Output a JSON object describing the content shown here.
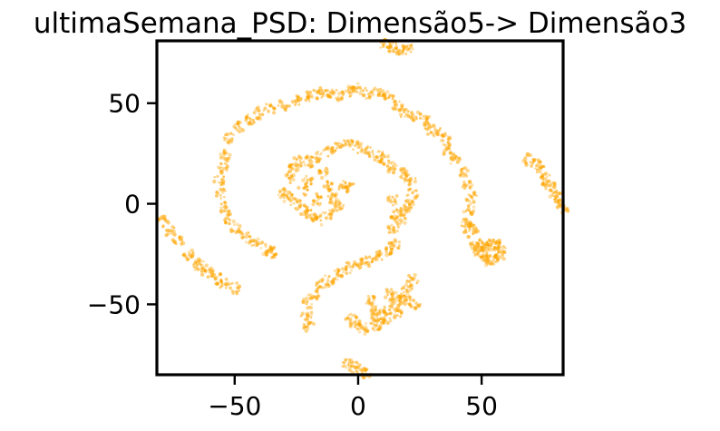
{
  "chart_data": {
    "type": "scatter",
    "title": "ultimaSemana_PSD: Dimensão5-> Dimensão3",
    "xlabel": "",
    "ylabel": "",
    "xlim": [
      -81.5,
      83
    ],
    "ylim": [
      -85,
      81
    ],
    "x_ticks": [
      -50,
      0,
      50
    ],
    "x_tick_labels": [
      "−50",
      "0",
      "50"
    ],
    "y_ticks": [
      -50,
      0,
      50
    ],
    "y_tick_labels": [
      "−50",
      "0",
      "50"
    ],
    "grid": false,
    "legend": "none",
    "point_color": "#FFA500",
    "point_alpha": 0.55,
    "series": [
      {
        "values": [
          [
            -53.5,
            24
          ],
          [
            -52,
            33
          ],
          [
            -48,
            38
          ],
          [
            -44,
            42
          ],
          [
            -40,
            45
          ],
          [
            -36,
            47
          ],
          [
            -30,
            49
          ],
          [
            -25,
            51
          ],
          [
            -20,
            53
          ],
          [
            -16,
            55
          ],
          [
            -12,
            55
          ],
          [
            -8,
            54
          ],
          [
            -3,
            56
          ],
          [
            0,
            57
          ],
          [
            4,
            55
          ],
          [
            8,
            55
          ],
          [
            12,
            53
          ],
          [
            16,
            49
          ],
          [
            19,
            45
          ],
          [
            23,
            44
          ],
          [
            27,
            42
          ],
          [
            29,
            37
          ],
          [
            32,
            35
          ],
          [
            35,
            32
          ],
          [
            36,
            27
          ],
          [
            39,
            22
          ],
          [
            43,
            16
          ],
          [
            44,
            10
          ],
          [
            46,
            3
          ],
          [
            45,
            -3
          ],
          [
            44,
            -10
          ],
          [
            45,
            -14
          ],
          [
            47,
            -12
          ],
          [
            -55,
            18
          ],
          [
            -56,
            12
          ],
          [
            -55.5,
            5
          ],
          [
            -54,
            -2
          ],
          [
            -52,
            -8
          ],
          [
            -49,
            -13
          ],
          [
            -45,
            -17
          ],
          [
            -41,
            -20
          ],
          [
            -37,
            -23
          ],
          [
            -35,
            -24
          ],
          [
            -79,
            -9
          ],
          [
            -76,
            -14
          ],
          [
            -73,
            -19
          ],
          [
            -69,
            -25
          ],
          [
            -65,
            -30
          ],
          [
            -61,
            -34
          ],
          [
            -57,
            -37
          ],
          [
            -54,
            -40
          ],
          [
            -50,
            -42
          ],
          [
            -63,
            -31
          ],
          [
            -20,
            -61
          ],
          [
            -21,
            -55
          ],
          [
            -20,
            -49
          ],
          [
            -18,
            -45
          ],
          [
            -15,
            -41
          ],
          [
            -12,
            -38
          ],
          [
            -8,
            -35
          ],
          [
            -4,
            -32
          ],
          [
            0,
            -30
          ],
          [
            4,
            -28
          ],
          [
            8,
            -26
          ],
          [
            12,
            -24
          ],
          [
            15,
            -20
          ],
          [
            14,
            -12
          ],
          [
            15,
            -5
          ],
          [
            14,
            2
          ],
          [
            -28,
            13
          ],
          [
            -26,
            17
          ],
          [
            -24,
            21
          ],
          [
            -20,
            21
          ],
          [
            -16,
            23
          ],
          [
            -12,
            26
          ],
          [
            -8,
            28
          ],
          [
            -4,
            31
          ],
          [
            0,
            28
          ],
          [
            4,
            26
          ],
          [
            8,
            24
          ],
          [
            11,
            22
          ],
          [
            14,
            18
          ],
          [
            18,
            15
          ],
          [
            21,
            12
          ],
          [
            22,
            5
          ],
          [
            21,
            0
          ],
          [
            19,
            -4
          ],
          [
            17,
            -8
          ],
          [
            -30,
            5
          ],
          [
            -28,
            3
          ],
          [
            -25,
            0
          ],
          [
            -22,
            -3
          ],
          [
            -19,
            -6
          ],
          [
            -16,
            -8
          ],
          [
            -12,
            -5
          ],
          [
            -10,
            3
          ],
          [
            -8,
            -1
          ],
          [
            -6,
            8
          ],
          [
            -4,
            10
          ],
          [
            -20,
            12
          ],
          [
            -14,
            15
          ],
          [
            -22,
            7
          ],
          [
            -17,
            2
          ],
          [
            -12,
            9
          ],
          [
            -3,
            -57
          ],
          [
            -1,
            -60
          ],
          [
            2,
            -62
          ],
          [
            6,
            -58
          ],
          [
            9,
            -55
          ],
          [
            12,
            -52
          ],
          [
            15,
            -49
          ],
          [
            18,
            -46
          ],
          [
            20,
            -42
          ],
          [
            22,
            -38
          ],
          [
            19,
            -48
          ],
          [
            16,
            -54
          ],
          [
            11,
            -57
          ],
          [
            6,
            -52
          ],
          [
            5,
            -48
          ],
          [
            13,
            -45
          ],
          [
            23,
            -50
          ],
          [
            8,
            -61
          ],
          [
            47,
            -22
          ],
          [
            49,
            -24
          ],
          [
            51,
            -26
          ],
          [
            53,
            -28
          ],
          [
            55,
            -28
          ],
          [
            57,
            -26
          ],
          [
            58,
            -22
          ],
          [
            56,
            -20
          ],
          [
            54,
            -20
          ],
          [
            52,
            -22
          ],
          [
            50,
            -20
          ],
          [
            69,
            22
          ],
          [
            72,
            20
          ],
          [
            74,
            16
          ],
          [
            76,
            12
          ],
          [
            78,
            8
          ],
          [
            80,
            4
          ],
          [
            81,
            1
          ],
          [
            83,
            -2
          ],
          [
            11,
            79
          ],
          [
            14,
            78
          ],
          [
            17,
            77
          ],
          [
            20,
            77
          ],
          [
            -4,
            -80
          ],
          [
            -2,
            -81
          ],
          [
            1,
            -83
          ],
          [
            3,
            -84
          ]
        ]
      }
    ]
  }
}
